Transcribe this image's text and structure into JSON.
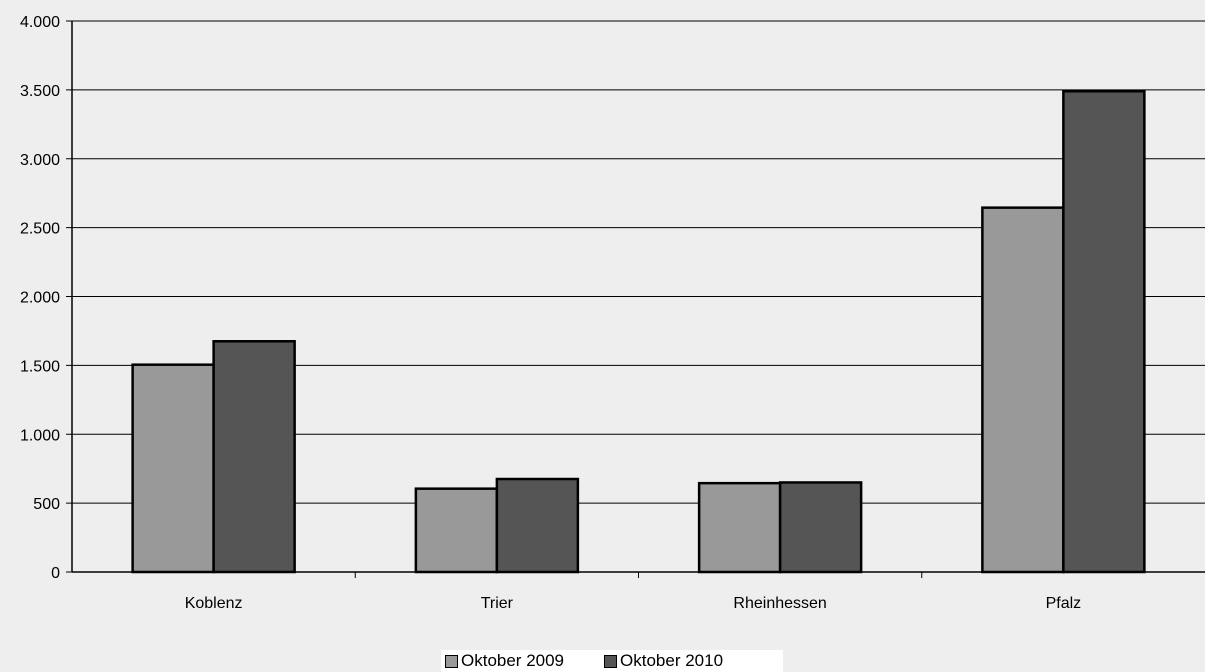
{
  "chart_data": {
    "type": "bar",
    "categories": [
      "Koblenz",
      "Trier",
      "Rheinhessen",
      "Pfalz"
    ],
    "series": [
      {
        "name": "Oktober 2009",
        "color": "#999999",
        "values": [
          1505,
          605,
          645,
          2645
        ]
      },
      {
        "name": "Oktober 2010",
        "color": "#555555",
        "values": [
          1675,
          675,
          650,
          3490
        ]
      }
    ],
    "ylim": [
      0,
      4000
    ],
    "yticks": [
      0,
      500,
      1000,
      1500,
      2000,
      2500,
      3000,
      3500,
      4000
    ],
    "ytick_labels": [
      "0",
      "500",
      "1.000",
      "1.500",
      "2.000",
      "2.500",
      "3.000",
      "3.500",
      "4.000"
    ],
    "title": "",
    "xlabel": "",
    "ylabel": "",
    "grid": "horizontal",
    "legend_position": "bottom-center",
    "background_color": "#eeeeee"
  }
}
